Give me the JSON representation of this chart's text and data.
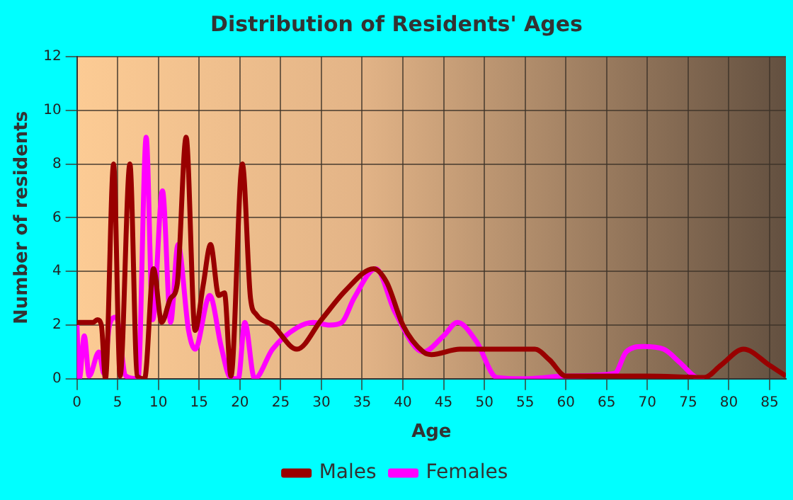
{
  "chart_data": {
    "type": "line",
    "title": "Distribution of Residents' Ages",
    "xlabel": "Age",
    "ylabel": "Number of residents",
    "xlim": [
      0,
      87
    ],
    "xticks": [
      0,
      5,
      10,
      15,
      20,
      25,
      30,
      35,
      40,
      45,
      50,
      55,
      60,
      65,
      70,
      75,
      80,
      85
    ],
    "ylim": [
      0,
      12
    ],
    "yticks": [
      0,
      2,
      4,
      6,
      8,
      10,
      12
    ],
    "grid": true,
    "legend": "bottom",
    "marker": "none",
    "line_style": "solid",
    "series": [
      {
        "name": "Males",
        "color": "#990000",
        "x": [
          0,
          2,
          2.5,
          3,
          3.5,
          4.5,
          5.3,
          6.5,
          7.4,
          8.3,
          9.4,
          10.4,
          11.5,
          12.3,
          13.4,
          14.5,
          15.5,
          16.4,
          17.4,
          18.1,
          18.9,
          20.3,
          21.3,
          22,
          24,
          27,
          30,
          33,
          36.4,
          38,
          40,
          42.5,
          43.5,
          47,
          52,
          56.2,
          58,
          60,
          63,
          70,
          77,
          79,
          81.8,
          85,
          87
        ],
        "values": [
          2.1,
          2.1,
          2.2,
          2,
          0,
          8,
          0.1,
          8,
          0.1,
          0,
          4.1,
          2.1,
          3,
          3.5,
          9,
          1.8,
          3.5,
          5,
          3.1,
          3.2,
          0.1,
          8,
          3,
          2.4,
          2,
          1.1,
          2.2,
          3.3,
          4.1,
          3.6,
          2,
          1,
          0.9,
          1.1,
          1.1,
          1.1,
          0.7,
          0.1,
          0.1,
          0.1,
          0.05,
          0.5,
          1.1,
          0.5,
          0.1
        ]
      },
      {
        "name": "Females",
        "color": "#ff00ff",
        "x": [
          0,
          0.3,
          0.9,
          1.5,
          2.7,
          3.3,
          4,
          4.8,
          6,
          7.5,
          8.5,
          9.3,
          10.5,
          11.5,
          12.4,
          13.7,
          14.5,
          16.3,
          17.7,
          18.8,
          19.8,
          20.6,
          21.8,
          24,
          27,
          29,
          31,
          32.5,
          34,
          36.7,
          39,
          42.5,
          45,
          46.7,
          49,
          51.5,
          55,
          60,
          64,
          66,
          67.4,
          69.5,
          72,
          74,
          76,
          77
        ],
        "values": [
          2,
          0,
          1.6,
          0.1,
          1,
          0.2,
          2,
          2.3,
          0.1,
          0,
          9,
          2.2,
          7,
          2.1,
          5,
          1.8,
          1.1,
          3.1,
          1.2,
          0.05,
          0,
          2.1,
          0,
          1.1,
          1.9,
          2.1,
          2,
          2.1,
          3,
          4.1,
          2.5,
          1,
          1.6,
          2.1,
          1.4,
          0.05,
          0,
          0.1,
          null,
          0.2,
          1,
          1.2,
          1.1,
          0.6,
          0.05,
          0
        ]
      }
    ]
  }
}
